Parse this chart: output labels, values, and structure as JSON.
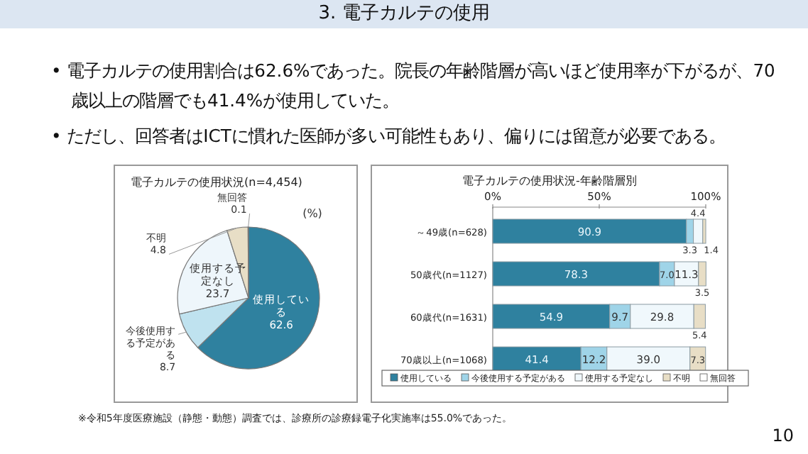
{
  "chart_data": [
    {
      "type": "other",
      "title": "3. 電子カルテの使用",
      "annotations": [
        "• 電子カルテの使用割合は62.6%であった。院長の年齢階層が高いほど使用率が下がるが、70歳以上の階層でも41.4%が使用していた。",
        "• ただし、回答者はICTに慣れた医師が多い可能性もあり、偏りには留意が必要である。",
        "※令和5年度医療施設（静態・動態）調査では、診療所の診療録電子化実施率は55.0%であった。",
        "10"
      ]
    },
    {
      "type": "pie",
      "title": "電子カルテの使用状況(n=4,454)",
      "categories": [
        "使用している",
        "今後使用する予定がある",
        "使用する予定なし",
        "不明",
        "無回答"
      ],
      "values": [
        62.6,
        8.7,
        23.7,
        4.8,
        0.1
      ],
      "colors": [
        "#2f819f",
        "#bfe2ef",
        "#eef6fb",
        "#e8dec6",
        "#ffffff"
      ],
      "data_labels": true,
      "annotations": [
        "(%)"
      ]
    },
    {
      "type": "bar",
      "orientation": "horizontal",
      "stacked": true,
      "title": "電子カルテの使用状況-年齢階層別",
      "categories": [
        "～49歳(n=628)",
        "50歳代(n=1127)",
        "60歳代(n=1631)",
        "70歳以上(n=1068)"
      ],
      "xlim": [
        0,
        100
      ],
      "xticks": [
        {
          "value": 0,
          "label": "0%"
        },
        {
          "value": 50,
          "label": "50%"
        },
        {
          "value": 100,
          "label": "100%"
        }
      ],
      "legend": "bottom",
      "series": [
        {
          "name": "使用している",
          "color": "#2f819f",
          "values": [
            90.9,
            78.3,
            54.9,
            41.4
          ],
          "value_labels": [
            "90.9",
            "78.3",
            "54.9",
            "41.4"
          ]
        },
        {
          "name": "今後使用する予定がある",
          "color": "#9fd4e8",
          "values": [
            3.3,
            7.0,
            9.7,
            12.2
          ],
          "value_labels": [
            "3.3",
            "7.0",
            "9.7",
            "12.2"
          ]
        },
        {
          "name": "使用する予定なし",
          "color": "#f0f8fc",
          "values": [
            4.4,
            11.3,
            29.8,
            39.0
          ],
          "value_labels": [
            "4.4",
            "11.3",
            "29.8",
            "39.0"
          ]
        },
        {
          "name": "不明",
          "color": "#e8dec6",
          "values": [
            1.4,
            3.5,
            5.4,
            7.3
          ],
          "value_labels": [
            "1.4",
            "3.5",
            "5.4",
            "7.3"
          ]
        },
        {
          "name": "無回答",
          "color": "#ffffff",
          "values": [
            null,
            null,
            null,
            null
          ]
        }
      ]
    }
  ]
}
